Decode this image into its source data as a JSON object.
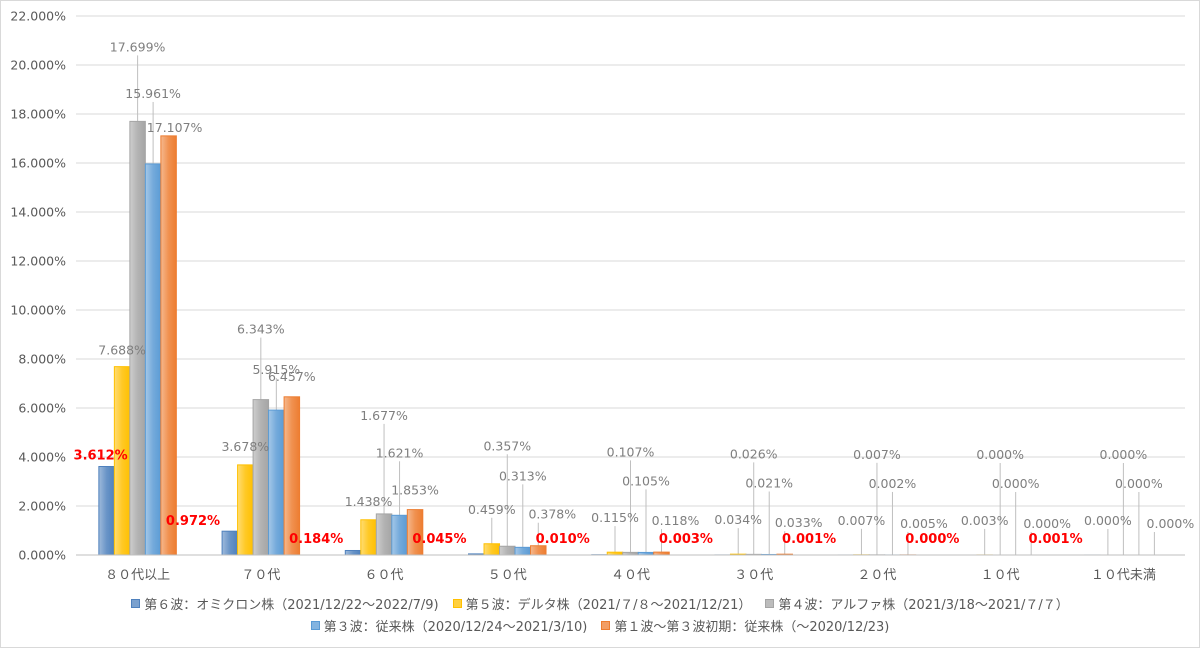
{
  "chart_data": {
    "type": "bar",
    "categories": [
      "８０代以上",
      "７０代",
      "６０代",
      "５０代",
      "４０代",
      "３０代",
      "２０代",
      "１０代",
      "１０代未満"
    ],
    "ylim": [
      0,
      22
    ],
    "yticks": [
      "0.000%",
      "2.000%",
      "4.000%",
      "6.000%",
      "8.000%",
      "10.000%",
      "12.000%",
      "14.000%",
      "16.000%",
      "18.000%",
      "20.000%",
      "22.000%"
    ],
    "grid": true,
    "legend_position": "bottom",
    "series": [
      {
        "name": "第６波：オミクロン株（2021/12/22～2022/7/9)",
        "color": "#4f81bd",
        "values": [
          3.612,
          0.972,
          0.184,
          0.045,
          0.01,
          0.003,
          0.001,
          0.0,
          0.001
        ],
        "labels": [
          "3.612%",
          "0.972%",
          "0.184%",
          "0.045%",
          "0.010%",
          "0.003%",
          "0.001%",
          "0.000%",
          "0.001%"
        ],
        "label_color": "#ff0000"
      },
      {
        "name": "第５波：デルタ株（2021/７/８～2021/12/21）",
        "color": "#ffc000",
        "values": [
          7.688,
          3.678,
          1.438,
          0.459,
          0.115,
          0.034,
          0.007,
          0.003,
          0.0
        ],
        "labels": [
          "7.688%",
          "3.678%",
          "1.438%",
          "0.459%",
          "0.115%",
          "0.034%",
          "0.007%",
          "0.003%",
          "0.000%"
        ],
        "label_color": "#7f7f7f"
      },
      {
        "name": "第４波：アルファ株（2021/3/18～2021/７/７）",
        "color": "#a5a5a5",
        "values": [
          17.699,
          6.343,
          1.677,
          0.357,
          0.107,
          0.026,
          0.007,
          0.0,
          0.0
        ],
        "labels": [
          "17.699%",
          "6.343%",
          "1.677%",
          "0.357%",
          "0.107%",
          "0.026%",
          "0.007%",
          "0.000%",
          "0.000%"
        ],
        "label_color": "#7f7f7f"
      },
      {
        "name": "第３波：従来株（2020/12/24～2021/3/10)",
        "color": "#5b9bd5",
        "values": [
          15.961,
          5.915,
          1.621,
          0.313,
          0.105,
          0.021,
          0.002,
          0.0,
          0.0
        ],
        "labels": [
          "15.961%",
          "5.915%",
          "1.621%",
          "0.313%",
          "0.105%",
          "0.021%",
          "0.002%",
          "0.000%",
          "0.000%"
        ],
        "label_color": "#7f7f7f"
      },
      {
        "name": "第１波～第３波初期：従来株（～2020/12/23)",
        "color": "#ed7d31",
        "values": [
          17.107,
          6.457,
          1.853,
          0.378,
          0.118,
          0.033,
          0.005,
          0.0,
          0.0
        ],
        "labels": [
          "17.107%",
          "6.457%",
          "1.853%",
          "0.378%",
          "0.118%",
          "0.033%",
          "0.005%",
          "0.000%",
          "0.000%"
        ],
        "label_color": "#7f7f7f"
      }
    ]
  }
}
